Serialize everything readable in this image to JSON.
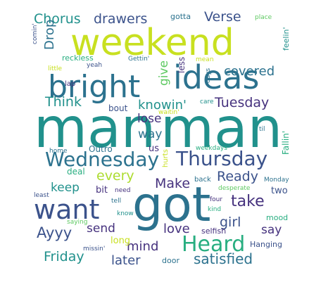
{
  "palette": {
    "purple": "#46327e",
    "indigo": "#3b528b",
    "blue": "#365c8d",
    "steel": "#2c728e",
    "teal": "#21918c",
    "seagreen": "#28ae80",
    "green": "#5ec962",
    "lime": "#addc30",
    "yellow": "#c8e020",
    "background": "#ffffff"
  },
  "words": [
    {
      "text": "man",
      "c": "teal"
    },
    {
      "text": "man",
      "c": "teal"
    },
    {
      "text": "weekend",
      "c": "yellow"
    },
    {
      "text": "got",
      "c": "steel"
    },
    {
      "text": "bright",
      "c": "steel"
    },
    {
      "text": "ideas",
      "c": "steel"
    },
    {
      "text": "want",
      "c": "indigo"
    },
    {
      "text": "Wednesday",
      "c": "steel"
    },
    {
      "text": "Thursday",
      "c": "indigo"
    },
    {
      "text": "Heard",
      "c": "seagreen"
    },
    {
      "text": "Chorus",
      "c": "teal"
    },
    {
      "text": "drawers",
      "c": "indigo"
    },
    {
      "text": "Verse",
      "c": "indigo"
    },
    {
      "text": "Think",
      "c": "teal"
    },
    {
      "text": "Tuesday",
      "c": "purple"
    },
    {
      "text": "covered",
      "c": "steel"
    },
    {
      "text": "knowin'",
      "c": "teal"
    },
    {
      "text": "satisfied",
      "c": "steel"
    },
    {
      "text": "take",
      "c": "purple"
    },
    {
      "text": "Ayyy",
      "c": "indigo"
    },
    {
      "text": "Friday",
      "c": "teal"
    },
    {
      "text": "give",
      "c": "green"
    },
    {
      "text": "lose",
      "c": "purple"
    },
    {
      "text": "way",
      "c": "steel"
    },
    {
      "text": "every",
      "c": "lime"
    },
    {
      "text": "Make",
      "c": "purple"
    },
    {
      "text": "Ready",
      "c": "indigo"
    },
    {
      "text": "keep",
      "c": "teal"
    },
    {
      "text": "girl",
      "c": "indigo"
    },
    {
      "text": "say",
      "c": "purple"
    },
    {
      "text": "send",
      "c": "purple"
    },
    {
      "text": "love",
      "c": "purple"
    },
    {
      "text": "mind",
      "c": "purple"
    },
    {
      "text": "later",
      "c": "indigo"
    },
    {
      "text": "Drop",
      "c": "steel"
    },
    {
      "text": "gotta",
      "c": "steel"
    },
    {
      "text": "place",
      "c": "green"
    },
    {
      "text": "feelin'",
      "c": "teal"
    },
    {
      "text": "comin'",
      "c": "indigo"
    },
    {
      "text": "reckless",
      "c": "seagreen"
    },
    {
      "text": "Gettin'",
      "c": "steel"
    },
    {
      "text": "mean",
      "c": "yellow"
    },
    {
      "text": "little",
      "c": "yellow"
    },
    {
      "text": "yeah",
      "c": "indigo"
    },
    {
      "text": "less",
      "c": "purple"
    },
    {
      "text": "days",
      "c": "steel"
    },
    {
      "text": "lap",
      "c": "purple"
    },
    {
      "text": "care",
      "c": "teal"
    },
    {
      "text": "waitin'",
      "c": "yellow"
    },
    {
      "text": "bout",
      "c": "indigo"
    },
    {
      "text": "til",
      "c": "steel"
    },
    {
      "text": "Fallin'",
      "c": "seagreen"
    },
    {
      "text": "home",
      "c": "steel"
    },
    {
      "text": "Outro",
      "c": "steel"
    },
    {
      "text": "us",
      "c": "purple"
    },
    {
      "text": "hurts",
      "c": "yellow"
    },
    {
      "text": "weekdays",
      "c": "seagreen"
    },
    {
      "text": "deal",
      "c": "seagreen"
    },
    {
      "text": "back",
      "c": "steel"
    },
    {
      "text": "Monday",
      "c": "steel"
    },
    {
      "text": "bit",
      "c": "purple"
    },
    {
      "text": "need",
      "c": "purple"
    },
    {
      "text": "desperate",
      "c": "green"
    },
    {
      "text": "two",
      "c": "indigo"
    },
    {
      "text": "least",
      "c": "indigo"
    },
    {
      "text": "tell",
      "c": "steel"
    },
    {
      "text": "four",
      "c": "purple"
    },
    {
      "text": "kind",
      "c": "seagreen"
    },
    {
      "text": "mood",
      "c": "seagreen"
    },
    {
      "text": "saying",
      "c": "green"
    },
    {
      "text": "know",
      "c": "teal"
    },
    {
      "text": "selfish",
      "c": "purple"
    },
    {
      "text": "long",
      "c": "yellow"
    },
    {
      "text": "Hanging",
      "c": "indigo"
    },
    {
      "text": "missin'",
      "c": "indigo"
    },
    {
      "text": "door",
      "c": "steel"
    }
  ]
}
